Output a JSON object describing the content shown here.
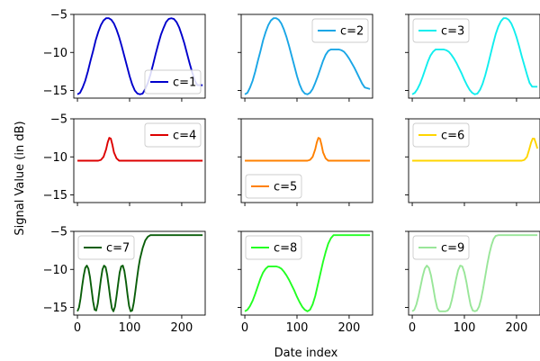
{
  "figure": {
    "ylabel": "Signal Value (in dB)",
    "xlabel": "Date index"
  },
  "chart_data": {
    "type": "line",
    "layout": "3x3 grid, shared x and y axes",
    "xlim": [
      -7,
      245
    ],
    "ylim": [
      -16,
      -5
    ],
    "xticks": [
      0,
      100,
      200
    ],
    "yticks": [
      -5,
      -10,
      -15
    ],
    "xlabel": "Date index",
    "ylabel": "Signal Value (in dB)",
    "grid": false,
    "series": [
      {
        "name": "c=1",
        "color": "#0000cc",
        "legend": "lower-right",
        "x": [
          0,
          5,
          10,
          15,
          20,
          25,
          30,
          35,
          40,
          45,
          50,
          55,
          60,
          65,
          70,
          75,
          80,
          85,
          90,
          95,
          100,
          105,
          110,
          115,
          120,
          125,
          130,
          135,
          140,
          145,
          150,
          155,
          160,
          165,
          170,
          175,
          180,
          185,
          190,
          195,
          200,
          205,
          210,
          215,
          220,
          225,
          230,
          235,
          240
        ],
        "y": [
          -15.5,
          -15.3,
          -14.6,
          -13.7,
          -12.5,
          -11.1,
          -9.8,
          -8.4,
          -7.3,
          -6.4,
          -5.8,
          -5.5,
          -5.5,
          -5.7,
          -6.2,
          -7.0,
          -8.0,
          -9.2,
          -10.5,
          -11.8,
          -13.1,
          -14.2,
          -15.0,
          -15.4,
          -15.5,
          -15.4,
          -14.8,
          -14.0,
          -12.9,
          -11.6,
          -10.2,
          -8.9,
          -7.7,
          -6.8,
          -6.0,
          -5.6,
          -5.5,
          -5.6,
          -6.0,
          -6.7,
          -7.7,
          -8.8,
          -10.1,
          -11.4,
          -12.6,
          -13.7,
          -14.3,
          -14.3,
          -14.3
        ]
      },
      {
        "name": "c=2",
        "color": "#1aa6e6",
        "legend": "upper-right",
        "x": [
          0,
          5,
          10,
          15,
          20,
          25,
          30,
          35,
          40,
          45,
          50,
          55,
          60,
          65,
          70,
          75,
          80,
          85,
          90,
          95,
          100,
          105,
          110,
          115,
          120,
          125,
          130,
          135,
          140,
          145,
          150,
          155,
          160,
          165,
          170,
          175,
          180,
          185,
          190,
          195,
          200,
          205,
          210,
          215,
          220,
          225,
          230,
          235,
          240
        ],
        "y": [
          -15.5,
          -15.3,
          -14.6,
          -13.7,
          -12.5,
          -11.1,
          -9.8,
          -8.4,
          -7.3,
          -6.4,
          -5.8,
          -5.5,
          -5.5,
          -5.7,
          -6.2,
          -7.0,
          -8.0,
          -9.2,
          -10.5,
          -11.8,
          -13.1,
          -14.2,
          -15.0,
          -15.4,
          -15.5,
          -15.3,
          -14.8,
          -14.0,
          -13.1,
          -12.1,
          -11.1,
          -10.3,
          -9.8,
          -9.6,
          -9.6,
          -9.6,
          -9.6,
          -9.7,
          -9.9,
          -10.3,
          -10.8,
          -11.4,
          -12.0,
          -12.7,
          -13.4,
          -14.1,
          -14.6,
          -14.7,
          -14.8
        ]
      },
      {
        "name": "c=3",
        "color": "#11eeee",
        "legend": "upper-left",
        "x": [
          0,
          5,
          10,
          15,
          20,
          25,
          30,
          35,
          40,
          45,
          50,
          55,
          60,
          65,
          70,
          75,
          80,
          85,
          90,
          95,
          100,
          105,
          110,
          115,
          120,
          125,
          130,
          135,
          140,
          145,
          150,
          155,
          160,
          165,
          170,
          175,
          180,
          185,
          190,
          195,
          200,
          205,
          210,
          215,
          220,
          225,
          230,
          235,
          240
        ],
        "y": [
          -15.5,
          -15.3,
          -14.8,
          -14.1,
          -13.2,
          -12.2,
          -11.2,
          -10.4,
          -9.9,
          -9.6,
          -9.6,
          -9.6,
          -9.6,
          -9.7,
          -9.9,
          -10.3,
          -10.8,
          -11.4,
          -12.1,
          -12.8,
          -13.6,
          -14.3,
          -14.9,
          -15.3,
          -15.5,
          -15.4,
          -14.9,
          -14.1,
          -13.0,
          -11.7,
          -10.3,
          -8.9,
          -7.6,
          -6.6,
          -5.9,
          -5.5,
          -5.5,
          -5.7,
          -6.2,
          -7.0,
          -8.0,
          -9.2,
          -10.5,
          -11.7,
          -12.9,
          -14.0,
          -14.5,
          -14.5,
          -14.5
        ]
      },
      {
        "name": "c=4",
        "color": "#dd0000",
        "legend": "upper-right",
        "x": [
          0,
          10,
          20,
          30,
          40,
          45,
          50,
          55,
          58,
          61,
          64,
          67,
          70,
          75,
          80,
          90,
          100,
          110,
          120,
          130,
          140,
          150,
          160,
          170,
          180,
          190,
          200,
          210,
          220,
          230,
          240
        ],
        "y": [
          -10.5,
          -10.5,
          -10.5,
          -10.5,
          -10.5,
          -10.4,
          -10.0,
          -9.0,
          -8.1,
          -7.5,
          -7.6,
          -8.4,
          -9.4,
          -10.2,
          -10.5,
          -10.5,
          -10.5,
          -10.5,
          -10.5,
          -10.5,
          -10.5,
          -10.5,
          -10.5,
          -10.5,
          -10.5,
          -10.5,
          -10.5,
          -10.5,
          -10.5,
          -10.5,
          -10.5
        ]
      },
      {
        "name": "c=5",
        "color": "#ff8000",
        "legend": "lower-left",
        "x": [
          0,
          10,
          20,
          30,
          40,
          50,
          60,
          70,
          80,
          90,
          100,
          110,
          120,
          125,
          130,
          135,
          138,
          141,
          144,
          147,
          150,
          155,
          160,
          170,
          180,
          190,
          200,
          210,
          220,
          230,
          240
        ],
        "y": [
          -10.5,
          -10.5,
          -10.5,
          -10.5,
          -10.5,
          -10.5,
          -10.5,
          -10.5,
          -10.5,
          -10.5,
          -10.5,
          -10.5,
          -10.5,
          -10.4,
          -10.0,
          -9.0,
          -8.1,
          -7.5,
          -7.6,
          -8.4,
          -9.4,
          -10.2,
          -10.5,
          -10.5,
          -10.5,
          -10.5,
          -10.5,
          -10.5,
          -10.5,
          -10.5,
          -10.5
        ]
      },
      {
        "name": "c=6",
        "color": "#ffd500",
        "legend": "upper-left",
        "x": [
          0,
          10,
          20,
          30,
          40,
          50,
          60,
          70,
          80,
          90,
          100,
          110,
          120,
          130,
          140,
          150,
          160,
          170,
          180,
          190,
          200,
          210,
          215,
          220,
          224,
          228,
          231,
          234,
          237,
          240
        ],
        "y": [
          -10.5,
          -10.5,
          -10.5,
          -10.5,
          -10.5,
          -10.5,
          -10.5,
          -10.5,
          -10.5,
          -10.5,
          -10.5,
          -10.5,
          -10.5,
          -10.5,
          -10.5,
          -10.5,
          -10.5,
          -10.5,
          -10.5,
          -10.5,
          -10.5,
          -10.5,
          -10.4,
          -10.0,
          -9.1,
          -8.1,
          -7.6,
          -7.6,
          -8.2,
          -8.9
        ]
      },
      {
        "name": "c=7",
        "color": "#0a5e0a",
        "legend": "upper-left",
        "x": [
          0,
          3,
          6,
          9,
          12,
          15,
          18,
          21,
          24,
          27,
          30,
          33,
          36,
          39,
          42,
          45,
          48,
          51,
          54,
          57,
          60,
          63,
          66,
          69,
          72,
          75,
          78,
          81,
          84,
          87,
          90,
          93,
          96,
          99,
          102,
          105,
          108,
          111,
          114,
          117,
          120,
          125,
          130,
          135,
          140,
          145,
          150,
          155,
          160,
          165,
          170,
          175,
          180,
          185,
          190,
          200,
          210,
          220,
          230,
          240
        ],
        "y": [
          -15.5,
          -15.0,
          -13.8,
          -12.2,
          -10.8,
          -9.8,
          -9.5,
          -9.9,
          -11.0,
          -12.6,
          -14.2,
          -15.3,
          -15.4,
          -14.5,
          -12.9,
          -11.3,
          -10.0,
          -9.5,
          -9.7,
          -10.7,
          -12.2,
          -13.8,
          -15.1,
          -15.5,
          -14.9,
          -13.5,
          -11.9,
          -10.4,
          -9.6,
          -9.5,
          -10.2,
          -11.6,
          -13.3,
          -14.8,
          -15.5,
          -15.4,
          -14.4,
          -12.9,
          -11.3,
          -9.8,
          -8.6,
          -7.2,
          -6.2,
          -5.7,
          -5.5,
          -5.5,
          -5.5,
          -5.5,
          -5.5,
          -5.5,
          -5.5,
          -5.5,
          -5.5,
          -5.5,
          -5.5,
          -5.5,
          -5.5,
          -5.5,
          -5.5,
          -5.5
        ]
      },
      {
        "name": "c=8",
        "color": "#22ff22",
        "legend": "upper-left",
        "x": [
          0,
          5,
          10,
          15,
          20,
          25,
          30,
          35,
          40,
          45,
          50,
          55,
          60,
          65,
          70,
          75,
          80,
          85,
          90,
          95,
          100,
          105,
          110,
          115,
          120,
          125,
          130,
          135,
          140,
          145,
          150,
          155,
          160,
          165,
          170,
          175,
          180,
          185,
          190,
          200,
          210,
          220,
          230,
          240
        ],
        "y": [
          -15.5,
          -15.3,
          -14.8,
          -14.1,
          -13.2,
          -12.2,
          -11.2,
          -10.4,
          -9.9,
          -9.6,
          -9.6,
          -9.6,
          -9.6,
          -9.7,
          -9.9,
          -10.3,
          -10.8,
          -11.4,
          -12.1,
          -12.8,
          -13.6,
          -14.3,
          -14.9,
          -15.3,
          -15.5,
          -15.3,
          -14.6,
          -13.5,
          -12.0,
          -10.5,
          -9.0,
          -7.7,
          -6.6,
          -5.9,
          -5.5,
          -5.5,
          -5.5,
          -5.5,
          -5.5,
          -5.5,
          -5.5,
          -5.5,
          -5.5,
          -5.5
        ]
      },
      {
        "name": "c=9",
        "color": "#99e699",
        "legend": "upper-left",
        "x": [
          0,
          4,
          8,
          12,
          16,
          20,
          24,
          28,
          32,
          36,
          40,
          44,
          48,
          52,
          56,
          60,
          64,
          68,
          72,
          76,
          80,
          84,
          88,
          92,
          96,
          100,
          104,
          108,
          112,
          116,
          120,
          124,
          128,
          132,
          136,
          140,
          144,
          148,
          152,
          156,
          160,
          165,
          170,
          175,
          180,
          190,
          200,
          210,
          220,
          230,
          240
        ],
        "y": [
          -15.5,
          -15.3,
          -14.6,
          -13.5,
          -12.2,
          -10.9,
          -9.9,
          -9.5,
          -9.8,
          -10.8,
          -12.3,
          -13.9,
          -15.1,
          -15.5,
          -15.5,
          -15.5,
          -15.5,
          -15.4,
          -15.0,
          -14.0,
          -12.7,
          -11.3,
          -10.1,
          -9.5,
          -9.6,
          -10.4,
          -11.7,
          -13.3,
          -14.7,
          -15.4,
          -15.5,
          -15.4,
          -14.9,
          -13.9,
          -12.5,
          -10.9,
          -9.3,
          -7.9,
          -6.8,
          -6.0,
          -5.6,
          -5.5,
          -5.5,
          -5.5,
          -5.5,
          -5.5,
          -5.5,
          -5.5,
          -5.5,
          -5.5,
          -5.5
        ]
      }
    ]
  }
}
